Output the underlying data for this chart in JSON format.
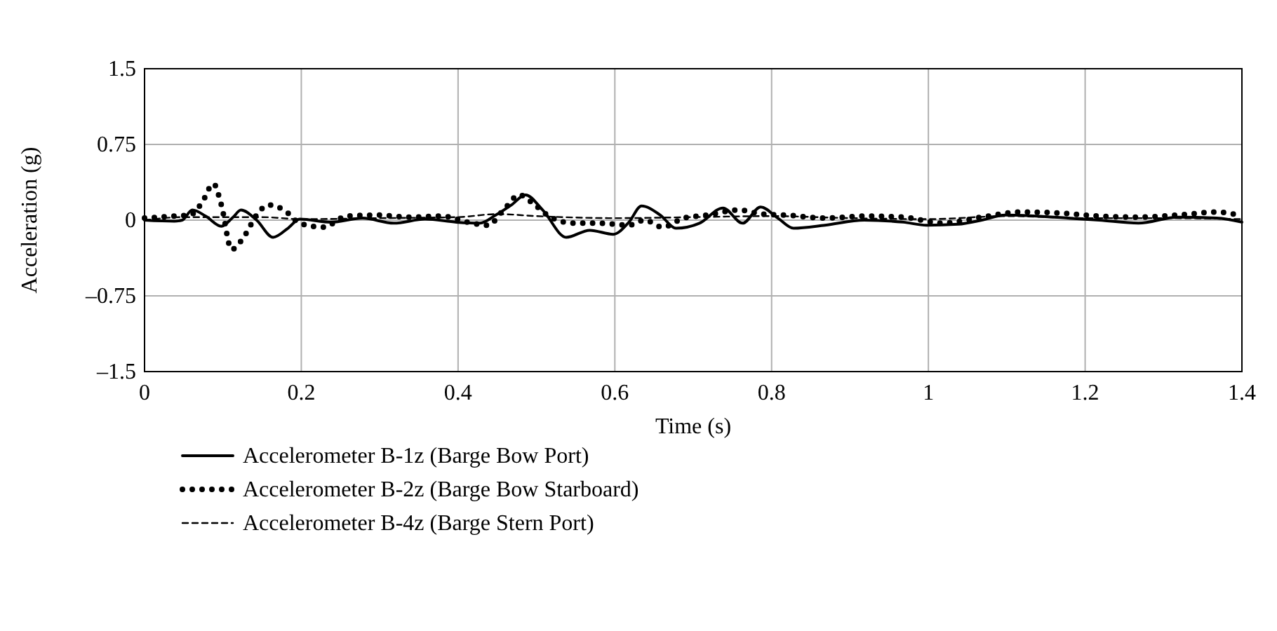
{
  "chart_data": {
    "type": "line",
    "xlabel": "Time (s)",
    "ylabel": "Acceleration (g)",
    "xlim": [
      0,
      1.4
    ],
    "ylim": [
      -1.5,
      1.5
    ],
    "xticks": [
      0,
      0.2,
      0.4,
      0.6,
      0.8,
      1,
      1.2,
      1.4
    ],
    "yticks": [
      {
        "value": -1.5,
        "label": "–1.5"
      },
      {
        "value": -0.75,
        "label": "–0.75"
      },
      0,
      0.75,
      1.5
    ],
    "grid": true,
    "legend": "bottom",
    "series": [
      {
        "name": "Accelerometer B-1z (Barge Bow Port)",
        "color": "#000000",
        "line_style": "solid",
        "x": [
          0,
          0.038,
          0.048,
          0.061,
          0.078,
          0.098,
          0.113,
          0.123,
          0.143,
          0.164,
          0.183,
          0.198,
          0.238,
          0.278,
          0.318,
          0.358,
          0.398,
          0.428,
          0.448,
          0.468,
          0.486,
          0.508,
          0.538,
          0.568,
          0.598,
          0.618,
          0.634,
          0.658,
          0.678,
          0.708,
          0.738,
          0.763,
          0.786,
          0.808,
          0.828,
          0.868,
          0.918,
          0.968,
          0.998,
          1.038,
          1.068,
          1.098,
          1.138,
          1.178,
          1.218,
          1.268,
          1.318,
          1.368,
          1.4
        ],
        "values": [
          0,
          -0.01,
          0,
          0.1,
          0.04,
          -0.06,
          0.03,
          0.1,
          0,
          -0.17,
          -0.08,
          0.01,
          -0.02,
          0.02,
          -0.03,
          0.01,
          -0.02,
          -0.03,
          0.05,
          0.15,
          0.25,
          0.1,
          -0.17,
          -0.1,
          -0.14,
          -0.02,
          0.14,
          0.05,
          -0.08,
          -0.03,
          0.12,
          -0.03,
          0.13,
          0.02,
          -0.08,
          -0.05,
          0,
          -0.02,
          -0.05,
          -0.04,
          0,
          0.05,
          0.04,
          0.02,
          0,
          -0.03,
          0.03,
          0.02,
          -0.02
        ]
      },
      {
        "name": "Accelerometer B-2z (Barge Bow Starboard)",
        "color": "#000000",
        "line_style": "dotted",
        "x": [
          0,
          0.038,
          0.058,
          0.073,
          0.088,
          0.098,
          0.111,
          0.128,
          0.143,
          0.158,
          0.178,
          0.198,
          0.228,
          0.258,
          0.298,
          0.338,
          0.378,
          0.418,
          0.438,
          0.458,
          0.478,
          0.498,
          0.518,
          0.548,
          0.578,
          0.618,
          0.638,
          0.661,
          0.688,
          0.718,
          0.758,
          0.788,
          0.818,
          0.868,
          0.918,
          0.968,
          1.018,
          1.068,
          1.118,
          1.168,
          1.218,
          1.268,
          1.318,
          1.368,
          1.4
        ],
        "values": [
          0.02,
          0.04,
          0.05,
          0.17,
          0.36,
          0.15,
          -0.29,
          -0.15,
          0.05,
          0.15,
          0.1,
          -0.03,
          -0.07,
          0.04,
          0.05,
          0.03,
          0.04,
          -0.03,
          -0.05,
          0.1,
          0.25,
          0.15,
          0.03,
          -0.03,
          -0.03,
          -0.05,
          0,
          -0.07,
          0.02,
          0.05,
          0.1,
          0.06,
          0.05,
          0.02,
          0.04,
          0.03,
          -0.03,
          0.03,
          0.08,
          0.07,
          0.04,
          0.03,
          0.05,
          0.08,
          0.04
        ]
      },
      {
        "name": "Accelerometer B-4z (Barge Stern Port)",
        "color": "#000000",
        "line_style": "dashed",
        "x": [
          0,
          0.05,
          0.1,
          0.15,
          0.2,
          0.3,
          0.4,
          0.45,
          0.5,
          0.6,
          0.7,
          0.8,
          0.9,
          1,
          1.1,
          1.2,
          1.3,
          1.4
        ],
        "values": [
          0,
          0.03,
          0.03,
          0.03,
          0.01,
          0.02,
          0.03,
          0.06,
          0.04,
          0.02,
          0.03,
          0.04,
          0.02,
          0.01,
          0.04,
          0.02,
          0.02,
          0.01
        ]
      }
    ]
  }
}
